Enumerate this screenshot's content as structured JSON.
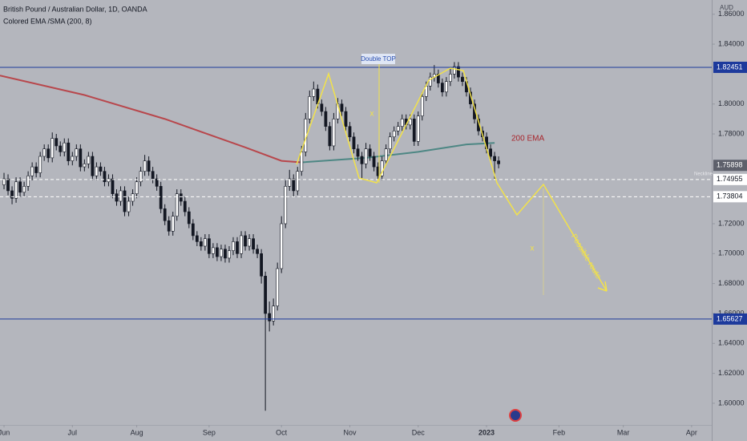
{
  "header": {
    "title": "British Pound / Australian Dollar, 1D, OANDA",
    "indicator": "Colored EMA /SMA (200, 8)"
  },
  "chart_data": {
    "type": "candlestick",
    "currency": "AUD",
    "ylim": [
      1.5855,
      1.8695
    ],
    "xlim": [
      -1,
      176
    ],
    "yticks": [
      {
        "value": 1.86,
        "label": "1.86000"
      },
      {
        "value": 1.84,
        "label": "1.84000"
      },
      {
        "value": 1.8,
        "label": "1.80000"
      },
      {
        "value": 1.78,
        "label": "1.78000"
      },
      {
        "value": 1.72,
        "label": "1.72000"
      },
      {
        "value": 1.7,
        "label": "1.70000"
      },
      {
        "value": 1.68,
        "label": "1.68000"
      },
      {
        "value": 1.66,
        "label": "1.66000"
      },
      {
        "value": 1.64,
        "label": "1.64000"
      },
      {
        "value": 1.62,
        "label": "1.62000"
      },
      {
        "value": 1.6,
        "label": "1.60000"
      }
    ],
    "xticks": [
      {
        "value": 0,
        "label": "Jun"
      },
      {
        "value": 17,
        "label": "Jul"
      },
      {
        "value": 33,
        "label": "Aug"
      },
      {
        "value": 51,
        "label": "Sep"
      },
      {
        "value": 69,
        "label": "Oct"
      },
      {
        "value": 86,
        "label": "Nov"
      },
      {
        "value": 103,
        "label": "Dec"
      },
      {
        "value": 120,
        "label": "2023",
        "bold": true
      },
      {
        "value": 138,
        "label": "Feb"
      },
      {
        "value": 154,
        "label": "Mar"
      },
      {
        "value": 171,
        "label": "Apr"
      }
    ],
    "up_color": "#ffffff",
    "down_color": "#131722",
    "candles": [
      [
        1.746,
        1.754,
        1.743,
        1.75
      ],
      [
        1.75,
        1.753,
        1.739,
        1.742
      ],
      [
        1.742,
        1.745,
        1.733,
        1.737
      ],
      [
        1.737,
        1.751,
        1.734,
        1.748
      ],
      [
        1.748,
        1.751,
        1.738,
        1.741
      ],
      [
        1.741,
        1.748,
        1.738,
        1.745
      ],
      [
        1.745,
        1.755,
        1.742,
        1.752
      ],
      [
        1.752,
        1.761,
        1.749,
        1.758
      ],
      [
        1.758,
        1.761,
        1.751,
        1.754
      ],
      [
        1.754,
        1.768,
        1.751,
        1.765
      ],
      [
        1.765,
        1.773,
        1.762,
        1.77
      ],
      [
        1.77,
        1.773,
        1.761,
        1.764
      ],
      [
        1.764,
        1.781,
        1.761,
        1.777
      ],
      [
        1.777,
        1.78,
        1.769,
        1.772
      ],
      [
        1.772,
        1.775,
        1.765,
        1.768
      ],
      [
        1.768,
        1.777,
        1.765,
        1.774
      ],
      [
        1.774,
        1.777,
        1.759,
        1.762
      ],
      [
        1.762,
        1.768,
        1.759,
        1.765
      ],
      [
        1.765,
        1.773,
        1.762,
        1.77
      ],
      [
        1.77,
        1.773,
        1.755,
        1.758
      ],
      [
        1.758,
        1.763,
        1.755,
        1.76
      ],
      [
        1.76,
        1.768,
        1.757,
        1.765
      ],
      [
        1.765,
        1.768,
        1.749,
        1.752
      ],
      [
        1.752,
        1.761,
        1.749,
        1.758
      ],
      [
        1.758,
        1.761,
        1.752,
        1.755
      ],
      [
        1.755,
        1.758,
        1.745,
        1.748
      ],
      [
        1.748,
        1.753,
        1.745,
        1.75
      ],
      [
        1.75,
        1.753,
        1.737,
        1.74
      ],
      [
        1.74,
        1.743,
        1.732,
        1.735
      ],
      [
        1.735,
        1.745,
        1.732,
        1.742
      ],
      [
        1.742,
        1.745,
        1.725,
        1.728
      ],
      [
        1.728,
        1.738,
        1.725,
        1.735
      ],
      [
        1.735,
        1.743,
        1.732,
        1.74
      ],
      [
        1.74,
        1.751,
        1.737,
        1.748
      ],
      [
        1.748,
        1.758,
        1.745,
        1.755
      ],
      [
        1.755,
        1.766,
        1.752,
        1.762
      ],
      [
        1.762,
        1.765,
        1.752,
        1.755
      ],
      [
        1.755,
        1.758,
        1.747,
        1.75
      ],
      [
        1.75,
        1.753,
        1.742,
        1.745
      ],
      [
        1.745,
        1.748,
        1.727,
        1.73
      ],
      [
        1.73,
        1.733,
        1.719,
        1.722
      ],
      [
        1.722,
        1.725,
        1.712,
        1.715
      ],
      [
        1.715,
        1.728,
        1.712,
        1.725
      ],
      [
        1.725,
        1.743,
        1.722,
        1.74
      ],
      [
        1.74,
        1.743,
        1.732,
        1.735
      ],
      [
        1.735,
        1.738,
        1.725,
        1.728
      ],
      [
        1.728,
        1.731,
        1.717,
        1.72
      ],
      [
        1.72,
        1.723,
        1.709,
        1.712
      ],
      [
        1.712,
        1.715,
        1.705,
        1.708
      ],
      [
        1.708,
        1.711,
        1.702,
        1.705
      ],
      [
        1.705,
        1.713,
        1.702,
        1.71
      ],
      [
        1.71,
        1.713,
        1.697,
        1.7
      ],
      [
        1.7,
        1.707,
        1.697,
        1.704
      ],
      [
        1.704,
        1.707,
        1.695,
        1.698
      ],
      [
        1.698,
        1.706,
        1.695,
        1.703
      ],
      [
        1.703,
        1.706,
        1.694,
        1.697
      ],
      [
        1.697,
        1.705,
        1.694,
        1.702
      ],
      [
        1.702,
        1.711,
        1.699,
        1.708
      ],
      [
        1.708,
        1.711,
        1.697,
        1.7
      ],
      [
        1.7,
        1.715,
        1.697,
        1.712
      ],
      [
        1.712,
        1.715,
        1.702,
        1.705
      ],
      [
        1.705,
        1.713,
        1.702,
        1.71
      ],
      [
        1.71,
        1.713,
        1.7,
        1.703
      ],
      [
        1.703,
        1.706,
        1.697,
        1.7
      ],
      [
        1.7,
        1.703,
        1.68,
        1.685
      ],
      [
        1.685,
        1.688,
        1.595,
        1.66
      ],
      [
        1.66,
        1.668,
        1.648,
        1.655
      ],
      [
        1.655,
        1.67,
        1.652,
        1.665
      ],
      [
        1.665,
        1.694,
        1.662,
        1.69
      ],
      [
        1.69,
        1.725,
        1.687,
        1.72
      ],
      [
        1.72,
        1.749,
        1.717,
        1.745
      ],
      [
        1.745,
        1.756,
        1.742,
        1.75
      ],
      [
        1.75,
        1.753,
        1.738,
        1.742
      ],
      [
        1.742,
        1.758,
        1.739,
        1.755
      ],
      [
        1.755,
        1.772,
        1.752,
        1.768
      ],
      [
        1.768,
        1.794,
        1.765,
        1.79
      ],
      [
        1.79,
        1.809,
        1.787,
        1.805
      ],
      [
        1.805,
        1.815,
        1.802,
        1.81
      ],
      [
        1.81,
        1.813,
        1.797,
        1.8
      ],
      [
        1.8,
        1.803,
        1.792,
        1.795
      ],
      [
        1.795,
        1.798,
        1.782,
        1.785
      ],
      [
        1.785,
        1.788,
        1.769,
        1.772
      ],
      [
        1.772,
        1.794,
        1.769,
        1.79
      ],
      [
        1.79,
        1.804,
        1.787,
        1.8
      ],
      [
        1.8,
        1.803,
        1.792,
        1.795
      ],
      [
        1.795,
        1.798,
        1.782,
        1.785
      ],
      [
        1.785,
        1.788,
        1.775,
        1.778
      ],
      [
        1.778,
        1.781,
        1.767,
        1.77
      ],
      [
        1.77,
        1.773,
        1.762,
        1.765
      ],
      [
        1.765,
        1.768,
        1.75,
        1.76
      ],
      [
        1.76,
        1.774,
        1.757,
        1.77
      ],
      [
        1.77,
        1.773,
        1.762,
        1.765
      ],
      [
        1.765,
        1.768,
        1.755,
        1.758
      ],
      [
        1.758,
        1.761,
        1.749,
        1.752
      ],
      [
        1.752,
        1.765,
        1.749,
        1.762
      ],
      [
        1.762,
        1.773,
        1.759,
        1.77
      ],
      [
        1.77,
        1.781,
        1.767,
        1.778
      ],
      [
        1.778,
        1.785,
        1.775,
        1.782
      ],
      [
        1.782,
        1.788,
        1.779,
        1.785
      ],
      [
        1.785,
        1.793,
        1.782,
        1.79
      ],
      [
        1.79,
        1.793,
        1.783,
        1.786
      ],
      [
        1.786,
        1.793,
        1.783,
        1.79
      ],
      [
        1.79,
        1.793,
        1.772,
        1.775
      ],
      [
        1.775,
        1.795,
        1.772,
        1.792
      ],
      [
        1.792,
        1.808,
        1.789,
        1.805
      ],
      [
        1.805,
        1.815,
        1.802,
        1.812
      ],
      [
        1.812,
        1.821,
        1.809,
        1.818
      ],
      [
        1.818,
        1.826,
        1.815,
        1.82
      ],
      [
        1.82,
        1.823,
        1.811,
        1.814
      ],
      [
        1.814,
        1.817,
        1.805,
        1.808
      ],
      [
        1.808,
        1.818,
        1.805,
        1.815
      ],
      [
        1.815,
        1.824,
        1.812,
        1.82
      ],
      [
        1.82,
        1.828,
        1.817,
        1.825
      ],
      [
        1.825,
        1.828,
        1.815,
        1.818
      ],
      [
        1.818,
        1.821,
        1.812,
        1.815
      ],
      [
        1.815,
        1.818,
        1.805,
        1.808
      ],
      [
        1.808,
        1.811,
        1.797,
        1.8
      ],
      [
        1.8,
        1.803,
        1.787,
        1.79
      ],
      [
        1.79,
        1.793,
        1.779,
        1.782
      ],
      [
        1.782,
        1.785,
        1.775,
        1.778
      ],
      [
        1.778,
        1.781,
        1.767,
        1.77
      ],
      [
        1.77,
        1.773,
        1.762,
        1.765
      ],
      [
        1.765,
        1.768,
        1.75,
        1.762
      ],
      [
        1.762,
        1.765,
        1.757,
        1.76
      ]
    ],
    "ema_segments": [
      {
        "color": "#b8474c",
        "x": [
          -1,
          20,
          40,
          60,
          69,
          74
        ],
        "values": [
          1.819,
          1.806,
          1.79,
          1.771,
          1.762,
          1.761
        ]
      },
      {
        "color": "#4d8784",
        "x": [
          74,
          90,
          103,
          115,
          122
        ],
        "values": [
          1.761,
          1.764,
          1.768,
          1.773,
          1.774
        ]
      }
    ],
    "levels": [
      {
        "value": 1.82451,
        "color": "#1d3a9c",
        "text_color": "#ffffff",
        "dashed": false
      },
      {
        "value": 1.74955,
        "color": "#ffffff",
        "text_color": "#131722",
        "dashed": true
      },
      {
        "value": 1.73804,
        "color": "#ffffff",
        "text_color": "#131722",
        "dashed": true
      },
      {
        "value": 1.65627,
        "color": "#1d3a9c",
        "text_color": "#ffffff",
        "dashed": false
      }
    ],
    "last_price": 1.75898,
    "last_price_color": "#5d606b",
    "annotations": {
      "double_top": "Double TOP",
      "ema_label": "200 EMA",
      "neckline": "Neckline",
      "route": "Possible route",
      "mark_a": "x",
      "mark_b": "x"
    }
  }
}
